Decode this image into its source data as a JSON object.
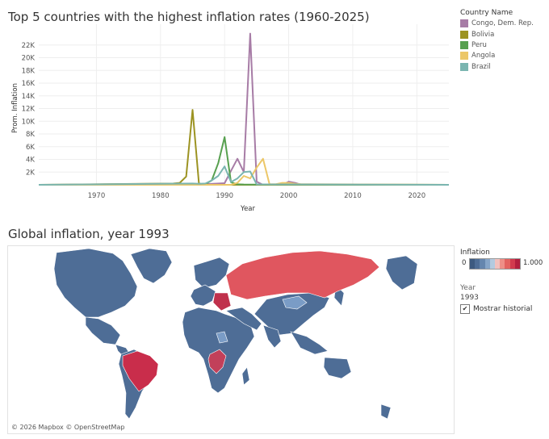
{
  "chart_title": "Top 5 countries with the highest inflation rates (1960-2025)",
  "map_title": "Global inflation, year 1993",
  "chart_data": {
    "type": "line",
    "title": "Top 5 countries with the highest inflation rates (1960-2025)",
    "xlabel": "Year",
    "ylabel": "Prom. Inflation",
    "xlim": [
      1961,
      2025
    ],
    "ylim": [
      0,
      24000
    ],
    "x_ticks": [
      1970,
      1980,
      1990,
      2000,
      2010,
      2020
    ],
    "y_ticks": [
      2000,
      4000,
      6000,
      8000,
      10000,
      12000,
      14000,
      16000,
      18000,
      20000,
      22000
    ],
    "y_tick_labels": [
      "2K",
      "4K",
      "6K",
      "8K",
      "10K",
      "12K",
      "14K",
      "16K",
      "18K",
      "20K",
      "22K"
    ],
    "legend_title": "Country Name",
    "legend_position": "right",
    "grid": true,
    "series": [
      {
        "name": "Congo, Dem. Rep.",
        "color": "#a77ca6",
        "points": [
          [
            1961,
            0
          ],
          [
            1985,
            0
          ],
          [
            1990,
            250
          ],
          [
            1991,
            2200
          ],
          [
            1992,
            4100
          ],
          [
            1993,
            2000
          ],
          [
            1994,
            23800
          ],
          [
            1995,
            500
          ],
          [
            1996,
            0
          ],
          [
            1999,
            0
          ],
          [
            2000,
            500
          ],
          [
            2001,
            300
          ],
          [
            2002,
            0
          ]
        ]
      },
      {
        "name": "Bolivia",
        "color": "#9c9322",
        "points": [
          [
            1961,
            0
          ],
          [
            1982,
            200
          ],
          [
            1983,
            300
          ],
          [
            1984,
            1300
          ],
          [
            1985,
            11800
          ],
          [
            1986,
            200
          ],
          [
            1987,
            0
          ],
          [
            2025,
            0
          ]
        ]
      },
      {
        "name": "Peru",
        "color": "#57a04f",
        "points": [
          [
            1961,
            0
          ],
          [
            1986,
            0
          ],
          [
            1987,
            100
          ],
          [
            1988,
            700
          ],
          [
            1989,
            3400
          ],
          [
            1990,
            7500
          ],
          [
            1991,
            400
          ],
          [
            1992,
            70
          ],
          [
            1993,
            50
          ],
          [
            2025,
            0
          ]
        ]
      },
      {
        "name": "Angola",
        "color": "#ecc768",
        "points": [
          [
            1961,
            0
          ],
          [
            1991,
            0
          ],
          [
            1992,
            300
          ],
          [
            1993,
            1400
          ],
          [
            1994,
            1000
          ],
          [
            1995,
            2700
          ],
          [
            1996,
            4100
          ],
          [
            1997,
            100
          ],
          [
            1998,
            100
          ],
          [
            1999,
            300
          ],
          [
            2000,
            300
          ],
          [
            2001,
            150
          ],
          [
            2002,
            100
          ],
          [
            2025,
            0
          ]
        ]
      },
      {
        "name": "Brazil",
        "color": "#7ab5b0",
        "points": [
          [
            1961,
            0
          ],
          [
            1985,
            200
          ],
          [
            1986,
            150
          ],
          [
            1987,
            200
          ],
          [
            1988,
            700
          ],
          [
            1989,
            1400
          ],
          [
            1990,
            2900
          ],
          [
            1991,
            450
          ],
          [
            1992,
            1000
          ],
          [
            1993,
            2000
          ],
          [
            1994,
            2100
          ],
          [
            1995,
            70
          ],
          [
            2025,
            0
          ]
        ]
      }
    ]
  },
  "map_legend": {
    "title": "Inflation",
    "min_label": "0",
    "max_label": "1.000",
    "ramp_colors": [
      "#3d5a80",
      "#4e6d96",
      "#6586ae",
      "#86a5c8",
      "#b3cbe0",
      "#f2c1bd",
      "#ee8f87",
      "#e3625f",
      "#d23b4e",
      "#b21f3e"
    ]
  },
  "year_label": "Year",
  "year_value": "1993",
  "history_label": "Mostrar historial",
  "history_checked": true,
  "map_credit": "© 2026 Mapbox © OpenStreetMap",
  "map_colors": {
    "base": "#4e6d96",
    "light": "#7a9cc6",
    "russia": "#e0565f",
    "brazil": "#c92d4b",
    "congo": "#c2405a",
    "ukraine": "#c0314c"
  }
}
